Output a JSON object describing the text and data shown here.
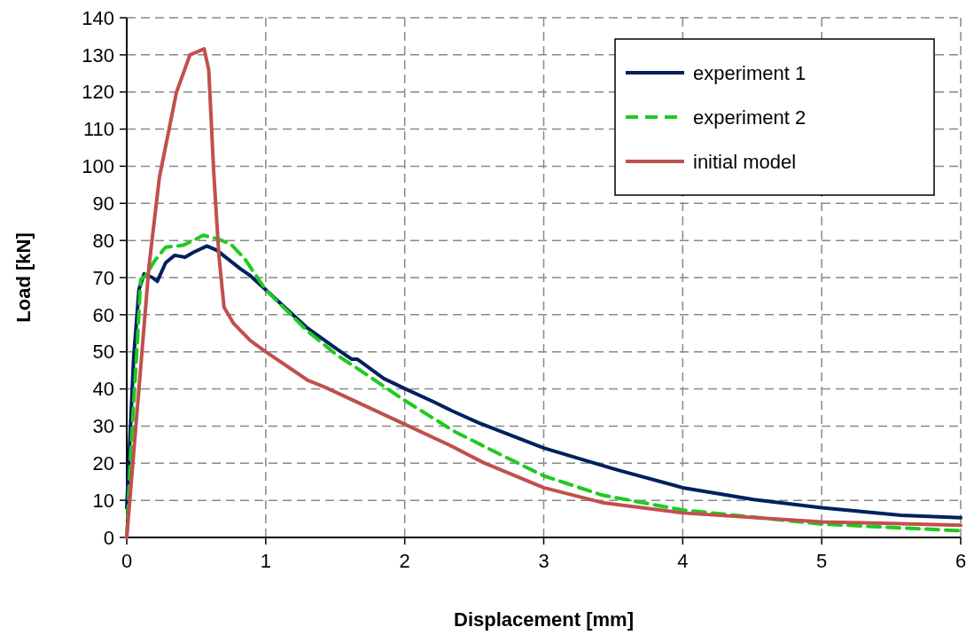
{
  "chart_data": {
    "type": "line",
    "xlabel": "Displacement [mm]",
    "ylabel": "Load [kN]",
    "xlim": [
      0,
      6
    ],
    "ylim": [
      0,
      140
    ],
    "xticks": [
      0,
      1,
      2,
      3,
      4,
      5,
      6
    ],
    "yticks": [
      0,
      10,
      20,
      30,
      40,
      50,
      60,
      70,
      80,
      90,
      100,
      110,
      120,
      130,
      140
    ],
    "grid": true,
    "legend": "top right",
    "series": [
      {
        "name": "experiment 1",
        "color": "#002060",
        "line_style": "solid",
        "x": [
          0,
          0.05,
          0.088,
          0.125,
          0.185,
          0.22,
          0.28,
          0.345,
          0.42,
          0.48,
          0.577,
          0.65,
          0.82,
          0.89,
          1.0,
          1.3,
          1.51,
          1.62,
          1.66,
          1.85,
          2.0,
          2.21,
          2.34,
          2.53,
          3.0,
          3.32,
          3.53,
          4.0,
          4.51,
          5.0,
          5.57,
          6.0
        ],
        "values": [
          8,
          48.5,
          66.8,
          71,
          70,
          69,
          74,
          76,
          75.5,
          76.8,
          78.5,
          77.3,
          72.3,
          70.5,
          66.7,
          56.4,
          50.8,
          48,
          48,
          42.8,
          40.1,
          36.5,
          34.1,
          30.9,
          24.1,
          20.5,
          18.2,
          13.4,
          10.2,
          8,
          6,
          5.3
        ]
      },
      {
        "name": "experiment 2",
        "color": "#1ecb1e",
        "line_style": "dashed",
        "x": [
          0,
          0.026,
          0.077,
          0.1,
          0.137,
          0.2,
          0.28,
          0.405,
          0.48,
          0.55,
          0.65,
          0.75,
          0.85,
          1.0,
          1.3,
          1.51,
          1.72,
          2.0,
          2.36,
          2.68,
          3.0,
          3.42,
          4.0,
          5.0,
          6.0
        ],
        "values": [
          0,
          21,
          53,
          69.5,
          70.5,
          74.5,
          78.2,
          78.7,
          80,
          81.4,
          80.5,
          79,
          75,
          66.7,
          55.6,
          49.2,
          44,
          36.9,
          28.5,
          22.5,
          16.6,
          11.4,
          7.4,
          3.6,
          1.8
        ]
      },
      {
        "name": "initial model",
        "color": "#c0504d",
        "line_style": "solid",
        "x": [
          0,
          0.16,
          0.235,
          0.357,
          0.455,
          0.557,
          0.59,
          0.625,
          0.663,
          0.7,
          0.77,
          0.89,
          1.0,
          1.3,
          1.43,
          2.0,
          2.32,
          2.57,
          3.0,
          3.42,
          4.0,
          5.0,
          6.0
        ],
        "values": [
          0,
          73,
          97,
          119.8,
          130,
          131.6,
          126,
          99,
          76,
          62,
          57.6,
          53,
          50,
          42.4,
          40.4,
          30.5,
          24.9,
          20.1,
          13.4,
          9.4,
          6.6,
          4.2,
          3.3
        ]
      }
    ]
  }
}
